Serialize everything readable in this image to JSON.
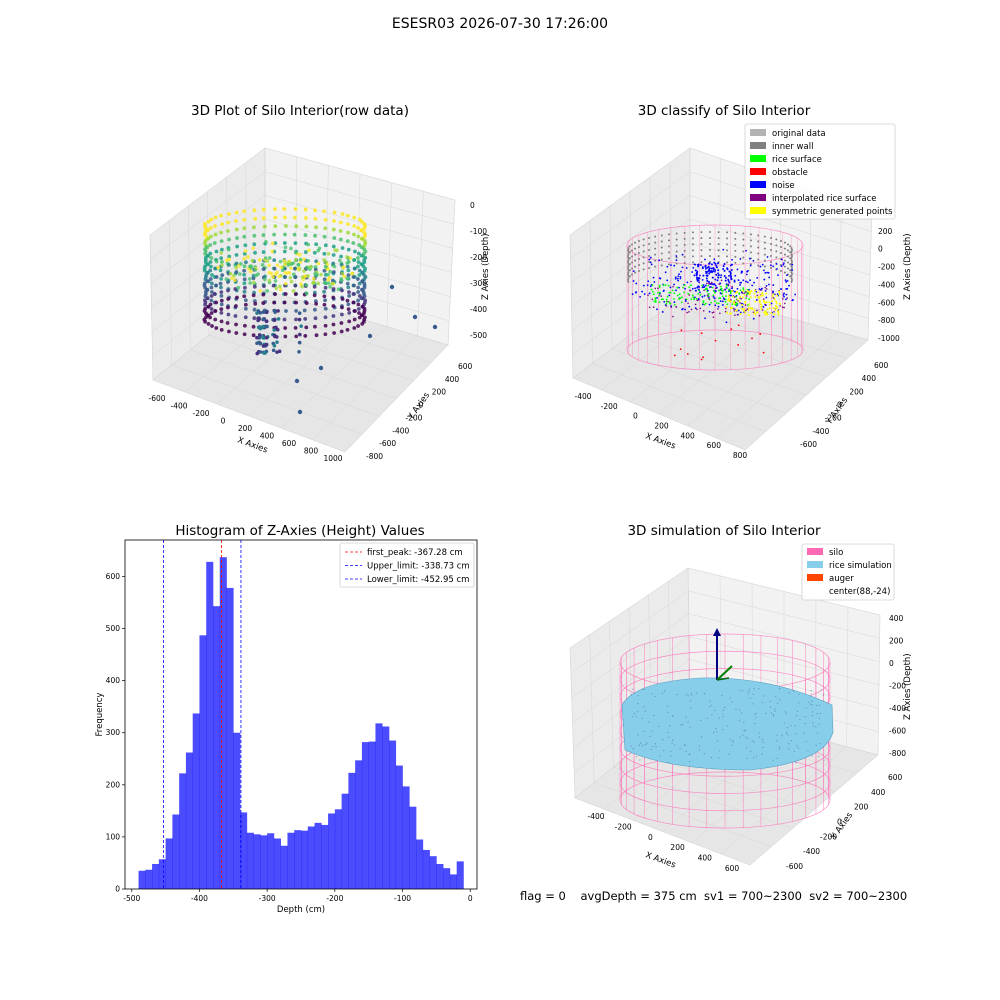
{
  "suptitle": "ESESR03 2026-07-30 17:26:00",
  "status_line": "flag = 0    avgDepth = 375 cm  sv1 = 700~2300  sv2 = 700~2300",
  "panels": {
    "raw": {
      "title": "3D Plot of Silo Interior(row data)",
      "xlabel": "X Axies",
      "ylabel": "Y Axies",
      "zlabel": "Z Axies (Depth)",
      "xticks": [
        "-600",
        "-400",
        "-200",
        "0",
        "200",
        "400",
        "600",
        "800",
        "1000"
      ],
      "yticks": [
        "-800",
        "-600",
        "-400",
        "-200",
        "0",
        "200",
        "400",
        "600"
      ],
      "zticks": [
        "0",
        "-100",
        "-200",
        "-300",
        "-400",
        "-500"
      ]
    },
    "classify": {
      "title": "3D classify of Silo Interior",
      "xlabel": "X Axies",
      "ylabel": "Y Axies",
      "zlabel": "Z Axies (Depth)",
      "xticks": [
        "-400",
        "-200",
        "0",
        "200",
        "400",
        "600",
        "800"
      ],
      "yticks": [
        "-600",
        "-400",
        "-200",
        "0",
        "200",
        "400",
        "600"
      ],
      "zticks": [
        "400",
        "200",
        "0",
        "-200",
        "-400",
        "-600",
        "-800",
        "-1000"
      ],
      "legend": [
        {
          "label": "original data",
          "color": "#b3b3b3"
        },
        {
          "label": "inner wall",
          "color": "#808080"
        },
        {
          "label": "rice surface",
          "color": "#00ff00"
        },
        {
          "label": "obstacle",
          "color": "#ff0000"
        },
        {
          "label": "noise",
          "color": "#0000ff"
        },
        {
          "label": "interpolated rice surface",
          "color": "#800080"
        },
        {
          "label": "symmetric generated points",
          "color": "#ffff00"
        }
      ]
    },
    "simulation": {
      "title": "3D simulation of Silo Interior",
      "xlabel": "X Axies",
      "ylabel": "Y Axies",
      "zlabel": "Z Axies (Depth)",
      "xticks": [
        "-400",
        "-200",
        "0",
        "200",
        "400",
        "600"
      ],
      "yticks": [
        "-600",
        "-400",
        "-200",
        "0",
        "200",
        "400",
        "600"
      ],
      "zticks": [
        "400",
        "200",
        "0",
        "-200",
        "-400",
        "-600",
        "-800"
      ],
      "legend": [
        {
          "label": "silo",
          "color": "#ff69b4"
        },
        {
          "label": "rice simulation",
          "color": "#87ceeb"
        },
        {
          "label": "auger",
          "color": "#ff4500"
        },
        {
          "label": "center(88,-24)",
          "color": ""
        }
      ]
    }
  },
  "chart_data": {
    "type": "bar",
    "title": "Histogram of Z-Axies (Height) Values",
    "xlabel": "Depth (cm)",
    "ylabel": "Frequency",
    "xlim": [
      -510,
      10
    ],
    "ylim": [
      0,
      670
    ],
    "xticks": [
      -500,
      -400,
      -300,
      -200,
      -100,
      0
    ],
    "yticks": [
      0,
      100,
      200,
      300,
      400,
      500,
      600
    ],
    "bin_edges_start": -490,
    "bin_width": 10,
    "values": [
      35,
      37,
      48,
      57,
      97,
      143,
      222,
      262,
      337,
      487,
      628,
      543,
      637,
      578,
      300,
      147,
      108,
      105,
      103,
      107,
      97,
      83,
      108,
      113,
      112,
      120,
      127,
      123,
      145,
      153,
      183,
      223,
      247,
      282,
      283,
      318,
      312,
      285,
      237,
      197,
      158,
      95,
      75,
      63,
      48,
      40,
      28,
      53
    ],
    "bar_color": "#0000ff",
    "lines": [
      {
        "label": "first_peak: -367.28 cm",
        "x": -367.28,
        "color": "#ff0000"
      },
      {
        "label": "Upper_limit: -338.73 cm",
        "x": -338.73,
        "color": "#0000ff"
      },
      {
        "label": "Lower_limit: -452.95 cm",
        "x": -452.95,
        "color": "#0000ff"
      }
    ],
    "legend_position": "top-right"
  }
}
